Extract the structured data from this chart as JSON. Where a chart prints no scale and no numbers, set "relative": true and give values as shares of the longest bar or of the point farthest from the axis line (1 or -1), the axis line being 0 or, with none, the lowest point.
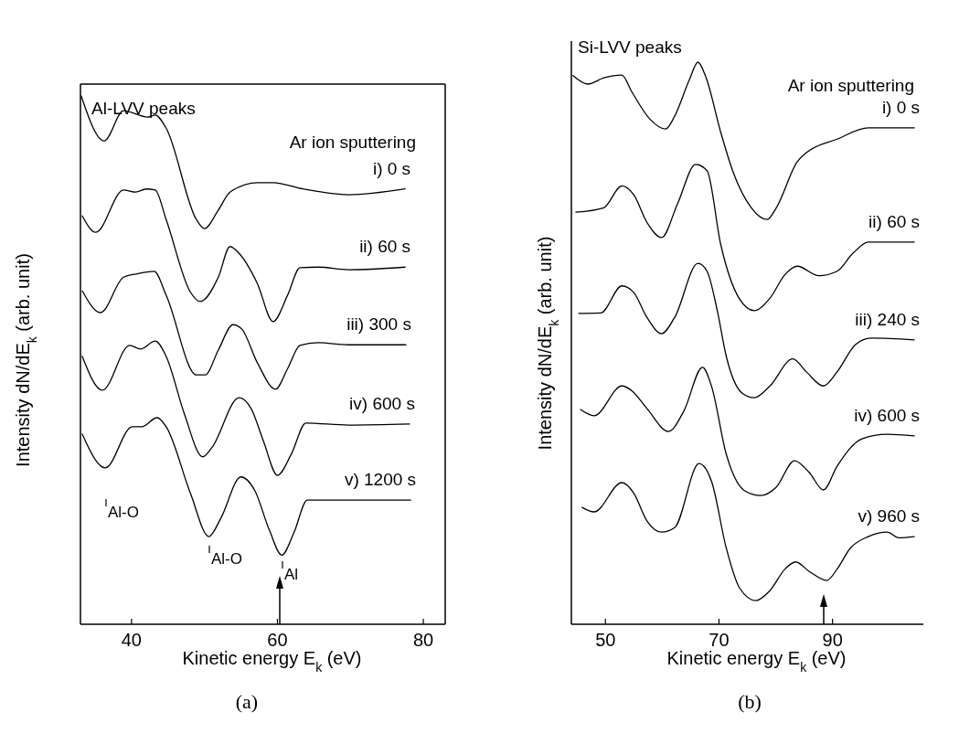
{
  "chart_data": [
    {
      "type": "line",
      "title": "Al-LVV peaks",
      "xlabel": "Kinetic energy E$_{k}$ (eV)",
      "ylabel": "Intensity dN/dE$_{k}$ (arb. unit)",
      "relative": true,
      "xlim": [
        33,
        83
      ],
      "xticks": [
        40,
        60,
        80
      ],
      "annotations": [
        "Ar ion sputtering",
        "Al-O",
        "Al-O",
        "Al",
        "(a)"
      ],
      "series": [
        {
          "name": "i) 0 s",
          "color": "#000000",
          "x": [
            33.1,
            36.25,
            38.9,
            42.25,
            43.25,
            44.75,
            48.9,
            50,
            51.9,
            53.5,
            57.25,
            59.4,
            63.5,
            69.75,
            77.5
          ],
          "values": [
            1.0,
            0.915,
            0.972,
            0.96,
            0.964,
            0.939,
            0.766,
            0.749,
            0.784,
            0.818,
            0.836,
            0.836,
            0.824,
            0.813,
            0.824
          ]
        },
        {
          "name": "ii) 60 s",
          "color": "#000000",
          "x": [
            33.25,
            35.1,
            38.9,
            40.6,
            42,
            43.25,
            44.75,
            48.1,
            49.4,
            51.9,
            53.5,
            54.75,
            57.25,
            59.4,
            61.4,
            63.1,
            65.6,
            69.75,
            77.5
          ],
          "values": [
            0.773,
            0.742,
            0.822,
            0.818,
            0.824,
            0.822,
            0.766,
            0.628,
            0.611,
            0.657,
            0.715,
            0.702,
            0.645,
            0.573,
            0.623,
            0.675,
            0.676,
            0.671,
            0.676
          ]
        },
        {
          "name": "iii) 300 s",
          "color": "#000000",
          "x": [
            33.25,
            35.75,
            38.9,
            40.6,
            43.1,
            44.75,
            48.9,
            50.1,
            51.9,
            53.9,
            55.1,
            57.25,
            59.75,
            61.4,
            63.1,
            65.6,
            69.75,
            77.6
          ],
          "values": [
            0.631,
            0.59,
            0.657,
            0.663,
            0.668,
            0.623,
            0.472,
            0.472,
            0.519,
            0.567,
            0.559,
            0.495,
            0.445,
            0.484,
            0.528,
            0.533,
            0.529,
            0.529
          ]
        },
        {
          "name": "iv) 600 s",
          "color": "#000000",
          "x": [
            33.25,
            36,
            39.75,
            41.25,
            43.25,
            44.75,
            47.25,
            49.75,
            51,
            54.75,
            56.4,
            58.1,
            60,
            61.9,
            63.9,
            69.75,
            78.1
          ],
          "values": [
            0.507,
            0.443,
            0.528,
            0.521,
            0.536,
            0.507,
            0.398,
            0.317,
            0.334,
            0.429,
            0.408,
            0.346,
            0.282,
            0.322,
            0.381,
            0.377,
            0.379
          ]
        },
        {
          "name": "v) 1200 s",
          "color": "#000000",
          "x": [
            33.25,
            36.4,
            40.1,
            41.4,
            43.5,
            44.75,
            48.1,
            50.6,
            52.25,
            55,
            56.9,
            58.9,
            60.6,
            62.25,
            64.1,
            69.75,
            78.25
          ],
          "values": [
            0.36,
            0.296,
            0.374,
            0.374,
            0.391,
            0.374,
            0.247,
            0.166,
            0.201,
            0.279,
            0.253,
            0.178,
            0.131,
            0.173,
            0.235,
            0.235,
            0.235
          ]
        }
      ]
    },
    {
      "type": "line",
      "title": "Si-LVV peaks",
      "xlabel": "Kinetic energy E$_{k}$ (eV)",
      "ylabel": "Intensity dN/dE$_{k}$ (arb. unit)",
      "relative": true,
      "xlim": [
        44,
        106
      ],
      "xticks": [
        50,
        70,
        90
      ],
      "annotations": [
        "Ar ion sputtering",
        "(b)"
      ],
      "series": [
        {
          "name": "i) 0 s",
          "color": "#000000",
          "x": [
            44.3,
            46.9,
            49.7,
            52.9,
            54.6,
            57.8,
            60.6,
            62.2,
            64.8,
            66.3,
            67.6,
            70.4,
            72.4,
            75.7,
            78.5,
            80.1,
            83.8,
            85.4,
            90.8,
            96.3,
            104.4
          ],
          "values": [
            0.976,
            0.961,
            0.972,
            0.977,
            0.948,
            0.899,
            0.881,
            0.904,
            0.969,
            1.0,
            0.976,
            0.872,
            0.807,
            0.741,
            0.72,
            0.741,
            0.823,
            0.839,
            0.863,
            0.883,
            0.883
          ]
        },
        {
          "name": "ii) 60 s",
          "color": "#000000",
          "x": [
            44.8,
            49.7,
            52.9,
            55,
            57.3,
            59.9,
            62.7,
            65.9,
            67.9,
            70.3,
            73.6,
            76.2,
            78.9,
            81.7,
            83.8,
            87.6,
            90.8,
            93.6,
            96.3,
            104.4
          ],
          "values": [
            0.733,
            0.741,
            0.78,
            0.764,
            0.715,
            0.688,
            0.748,
            0.818,
            0.807,
            0.676,
            0.579,
            0.558,
            0.579,
            0.623,
            0.637,
            0.62,
            0.628,
            0.66,
            0.68,
            0.68
          ]
        },
        {
          "name": "iii) 240 s",
          "color": "#000000",
          "x": [
            45.3,
            49.2,
            52.9,
            55,
            57.3,
            59.9,
            62.2,
            66.3,
            67.9,
            69.7,
            71.3,
            74.1,
            76.2,
            78.9,
            83,
            85.4,
            88.4,
            90.8,
            94.1,
            96.8,
            104.4
          ],
          "values": [
            0.553,
            0.554,
            0.602,
            0.59,
            0.546,
            0.517,
            0.546,
            0.642,
            0.628,
            0.558,
            0.476,
            0.411,
            0.403,
            0.423,
            0.472,
            0.449,
            0.424,
            0.449,
            0.498,
            0.509,
            0.506
          ]
        },
        {
          "name": "iv) 600 s",
          "color": "#000000",
          "x": [
            45.6,
            48,
            52.9,
            54.6,
            57.3,
            61.1,
            63.8,
            67.1,
            68.7,
            71.3,
            74.6,
            77.3,
            80.1,
            83.3,
            85.9,
            88.4,
            90.8,
            95.2,
            99.6,
            104.4
          ],
          "values": [
            0.382,
            0.371,
            0.424,
            0.416,
            0.384,
            0.343,
            0.379,
            0.457,
            0.423,
            0.302,
            0.237,
            0.229,
            0.244,
            0.291,
            0.27,
            0.239,
            0.281,
            0.33,
            0.338,
            0.335
          ]
        },
        {
          "name": "v) 960 s",
          "color": "#000000",
          "x": [
            45.9,
            48,
            52.9,
            55,
            57.3,
            59.9,
            62.2,
            66.5,
            68.7,
            71.3,
            73.6,
            76.5,
            78.9,
            81.7,
            83.5,
            85.9,
            89,
            90.8,
            93.1,
            96.3,
            99.6,
            101.7,
            104.4
          ],
          "values": [
            0.208,
            0.2,
            0.252,
            0.233,
            0.184,
            0.164,
            0.172,
            0.286,
            0.254,
            0.135,
            0.065,
            0.042,
            0.059,
            0.099,
            0.111,
            0.094,
            0.078,
            0.098,
            0.135,
            0.156,
            0.164,
            0.154,
            0.156
          ]
        }
      ]
    }
  ]
}
